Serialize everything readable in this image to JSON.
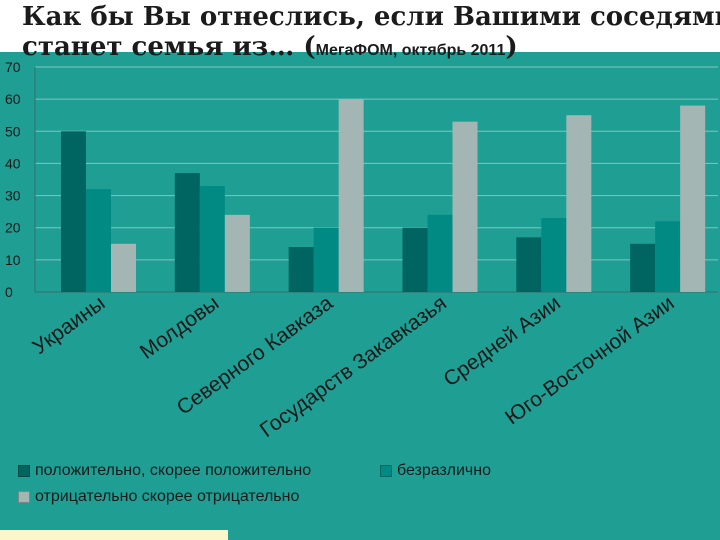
{
  "slide": {
    "title_line1": "Как бы Вы отнеслись, если Вашими соседями",
    "title_line2": "станет семья из… (",
    "title_source": "МегаФОМ, октябрь 2011",
    "title_close": ")"
  },
  "chart_data": {
    "type": "bar",
    "categories": [
      "Украины",
      "Молдовы",
      "Северного Кавказа",
      "Государств Закавказья",
      "Средней Азии",
      "Юго-Восточной Азии"
    ],
    "series": [
      {
        "name": "положительно, скорее положительно",
        "color": "#006461",
        "values": [
          50,
          37,
          14,
          20,
          17,
          15
        ]
      },
      {
        "name": "безразлично",
        "color": "#008a84",
        "values": [
          32,
          33,
          20,
          24,
          23,
          22
        ]
      },
      {
        "name": "отрицательно скорее отрицательно",
        "color": "#a4b6b4",
        "values": [
          15,
          24,
          60,
          53,
          55,
          58
        ]
      }
    ],
    "ylim": [
      0,
      70
    ],
    "yticks": [
      "0",
      "10",
      "20",
      "30",
      "40",
      "50",
      "60",
      "70"
    ],
    "grid": true,
    "legend_position": "bottom"
  },
  "colors": {
    "background": "#1f9e94",
    "gridline": "#84c4be",
    "bottom_strip": "#fbf6cc"
  }
}
